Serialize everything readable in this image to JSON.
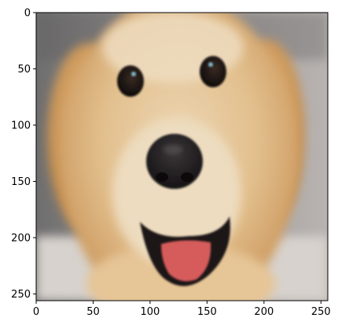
{
  "chart_data": {
    "type": "image",
    "image_subject": "close-up photo of a smiling golden retriever face",
    "xlim": [
      0,
      256
    ],
    "ylim": [
      256,
      0
    ],
    "x_ticks": [
      0,
      50,
      100,
      150,
      200,
      250
    ],
    "y_ticks": [
      0,
      50,
      100,
      150,
      200,
      250
    ],
    "x_tick_labels": [
      "0",
      "50",
      "100",
      "150",
      "200",
      "250"
    ],
    "y_tick_labels": [
      "0",
      "50",
      "100",
      "150",
      "200",
      "250"
    ],
    "title": "",
    "xlabel": "",
    "ylabel": "",
    "grid": false
  },
  "colors": {
    "fur_light": "#e9cfa6",
    "fur_mid": "#d9ab70",
    "fur_dark": "#b98345",
    "nose": "#1c1a1c",
    "mouth": "#161214",
    "tongue": "#d85a5a",
    "background_left": "#7c7b7b",
    "background_right": "#b9b5b3",
    "background_bottom": "#d9d4cf"
  }
}
